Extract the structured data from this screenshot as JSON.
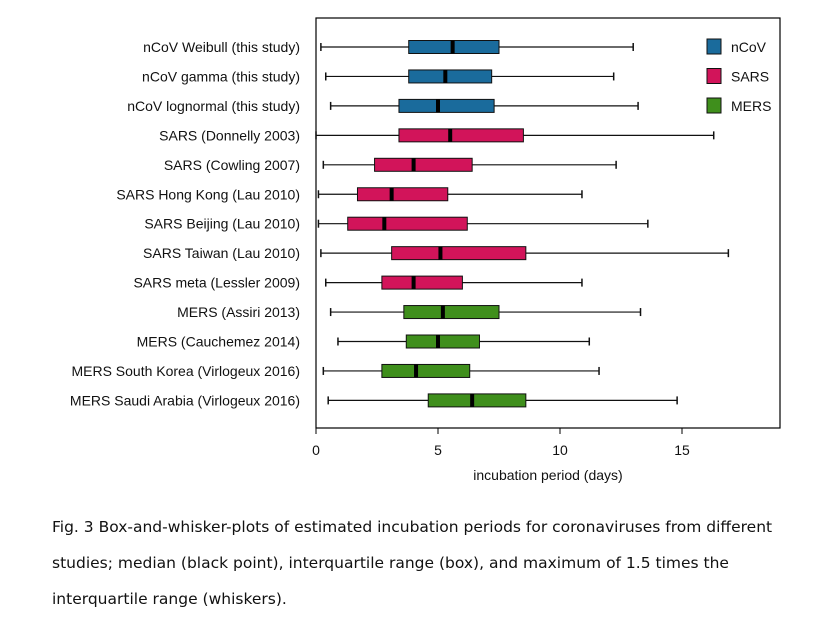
{
  "chart_data": {
    "type": "boxplot",
    "orientation": "horizontal",
    "xlabel": "incubation period (days)",
    "xlim": [
      0,
      19
    ],
    "xticks": [
      0,
      5,
      10,
      15
    ],
    "legend": {
      "position": "top-right",
      "entries": [
        {
          "label": "nCoV",
          "group": "nCoV"
        },
        {
          "label": "SARS",
          "group": "SARS"
        },
        {
          "label": "MERS",
          "group": "MERS"
        }
      ]
    },
    "colors": {
      "nCoV": "#1a6b9c",
      "SARS": "#d2145a",
      "MERS": "#3f8f1c"
    },
    "series": [
      {
        "label": "nCoV Weibull (this study)",
        "group": "nCoV",
        "whisker_low": 0.2,
        "q1": 3.8,
        "median": 5.6,
        "q3": 7.5,
        "whisker_high": 13.0
      },
      {
        "label": "nCoV gamma (this study)",
        "group": "nCoV",
        "whisker_low": 0.4,
        "q1": 3.8,
        "median": 5.3,
        "q3": 7.2,
        "whisker_high": 12.2
      },
      {
        "label": "nCoV lognormal (this study)",
        "group": "nCoV",
        "whisker_low": 0.6,
        "q1": 3.4,
        "median": 5.0,
        "q3": 7.3,
        "whisker_high": 13.2
      },
      {
        "label": "SARS (Donnelly 2003)",
        "group": "SARS",
        "whisker_low": 0.0,
        "q1": 3.4,
        "median": 5.5,
        "q3": 8.5,
        "whisker_high": 16.3
      },
      {
        "label": "SARS (Cowling 2007)",
        "group": "SARS",
        "whisker_low": 0.3,
        "q1": 2.4,
        "median": 4.0,
        "q3": 6.4,
        "whisker_high": 12.3
      },
      {
        "label": "SARS Hong Kong (Lau 2010)",
        "group": "SARS",
        "whisker_low": 0.1,
        "q1": 1.7,
        "median": 3.1,
        "q3": 5.4,
        "whisker_high": 10.9
      },
      {
        "label": "SARS Beijing (Lau 2010)",
        "group": "SARS",
        "whisker_low": 0.1,
        "q1": 1.3,
        "median": 2.8,
        "q3": 6.2,
        "whisker_high": 13.6
      },
      {
        "label": "SARS Taiwan (Lau 2010)",
        "group": "SARS",
        "whisker_low": 0.2,
        "q1": 3.1,
        "median": 5.1,
        "q3": 8.6,
        "whisker_high": 16.9
      },
      {
        "label": "SARS meta (Lessler 2009)",
        "group": "SARS",
        "whisker_low": 0.4,
        "q1": 2.7,
        "median": 4.0,
        "q3": 6.0,
        "whisker_high": 10.9
      },
      {
        "label": "MERS (Assiri 2013)",
        "group": "MERS",
        "whisker_low": 0.6,
        "q1": 3.6,
        "median": 5.2,
        "q3": 7.5,
        "whisker_high": 13.3
      },
      {
        "label": "MERS (Cauchemez 2014)",
        "group": "MERS",
        "whisker_low": 0.9,
        "q1": 3.7,
        "median": 5.0,
        "q3": 6.7,
        "whisker_high": 11.2
      },
      {
        "label": "MERS South Korea (Virlogeux 2016)",
        "group": "MERS",
        "whisker_low": 0.3,
        "q1": 2.7,
        "median": 4.1,
        "q3": 6.3,
        "whisker_high": 11.6
      },
      {
        "label": "MERS Saudi Arabia (Virlogeux 2016)",
        "group": "MERS",
        "whisker_low": 0.5,
        "q1": 4.6,
        "median": 6.4,
        "q3": 8.6,
        "whisker_high": 14.8
      }
    ]
  },
  "caption": "Fig. 3 Box-and-whisker-plots of estimated incubation periods for coronaviruses from different studies; median (black point), interquartile range (box), and maximum of 1.5 times the interquartile range (whiskers)."
}
